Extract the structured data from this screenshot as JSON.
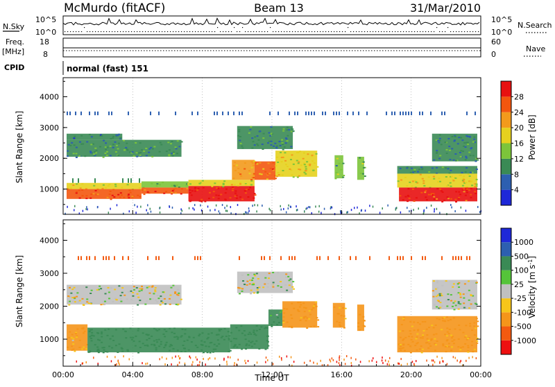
{
  "header": {
    "station": "McMurdo (fitACF)",
    "beam": "Beam 13",
    "date": "31/Mar/2010"
  },
  "top_panels": {
    "nsky_label": "N.Sky",
    "nsky_ticks": [
      "10^5",
      "10^0"
    ],
    "nsearch_label": "N.Search",
    "nsearch_ticks": [
      "10^5",
      "10^0"
    ],
    "freq_label_1": "Freq.",
    "freq_label_2": "[MHz]",
    "freq_ticks": [
      "18",
      "8"
    ],
    "nave_label": "Nave",
    "nave_ticks": [
      "60",
      "0"
    ],
    "cpid_label": "CPID",
    "cpid_value": "normal (fast) 151"
  },
  "x_axis": {
    "label": "Time UT",
    "ticks": [
      "00:00",
      "04:00",
      "08:00",
      "12:00",
      "16:00",
      "20:00",
      "00:00"
    ]
  },
  "chart_data": [
    {
      "type": "heatmap",
      "title": "",
      "quantity": "Power",
      "colorbar_label": "Power [dB]",
      "colorbar_ticks": [
        "4",
        "8",
        "12",
        "16",
        "20",
        "24",
        "28"
      ],
      "colorbar_range": [
        0,
        32
      ],
      "colors": [
        "#1e28d8",
        "#2d5fb0",
        "#3a8a55",
        "#7cc43a",
        "#e6d11e",
        "#f39a1c",
        "#f3560e",
        "#e81010"
      ],
      "xlabel": "Time UT",
      "ylabel": "Slant Range [km]",
      "ylim": [
        180,
        4620
      ],
      "yticks": [
        "1000",
        "2000",
        "3000",
        "4000"
      ],
      "xlim_hours": [
        0,
        24
      ],
      "regions": [
        {
          "t0": 0.2,
          "t1": 6.8,
          "r0": 2050,
          "r1": 2600,
          "value": 10
        },
        {
          "t0": 0.2,
          "t1": 3.4,
          "r0": 2600,
          "r1": 2800,
          "value": 8
        },
        {
          "t0": 0.2,
          "t1": 4.5,
          "r0": 1200,
          "r1": 1350,
          "value": 11
        },
        {
          "t0": 0.2,
          "t1": 4.5,
          "r0": 1000,
          "r1": 1200,
          "value": 18
        },
        {
          "t0": 0.2,
          "t1": 4.5,
          "r0": 680,
          "r1": 1000,
          "value": 27
        },
        {
          "t0": 4.5,
          "t1": 7.2,
          "r0": 1050,
          "r1": 1250,
          "value": 14
        },
        {
          "t0": 4.5,
          "t1": 7.2,
          "r0": 850,
          "r1": 1050,
          "value": 27
        },
        {
          "t0": 7.2,
          "t1": 11.0,
          "r0": 600,
          "r1": 1100,
          "value": 29
        },
        {
          "t0": 7.2,
          "t1": 11.0,
          "r0": 1100,
          "r1": 1300,
          "value": 17
        },
        {
          "t0": 11.0,
          "t1": 12.2,
          "r0": 1300,
          "r1": 1900,
          "value": 24
        },
        {
          "t0": 9.7,
          "t1": 11.0,
          "r0": 1300,
          "r1": 1950,
          "value": 22
        },
        {
          "t0": 12.2,
          "t1": 14.6,
          "r0": 1400,
          "r1": 2250,
          "value": 17
        },
        {
          "t0": 10.0,
          "t1": 13.2,
          "r0": 2300,
          "r1": 3050,
          "value": 9
        },
        {
          "t0": 15.6,
          "t1": 16.1,
          "r0": 1350,
          "r1": 2100,
          "value": 12
        },
        {
          "t0": 16.9,
          "t1": 17.3,
          "r0": 1300,
          "r1": 2050,
          "value": 14
        },
        {
          "t0": 19.2,
          "t1": 23.8,
          "r0": 1500,
          "r1": 1750,
          "value": 10
        },
        {
          "t0": 19.2,
          "t1": 23.8,
          "r0": 1050,
          "r1": 1500,
          "value": 17
        },
        {
          "t0": 19.3,
          "t1": 23.8,
          "r0": 600,
          "r1": 1050,
          "value": 28
        },
        {
          "t0": 21.2,
          "t1": 23.8,
          "r0": 1900,
          "r1": 2800,
          "value": 9
        },
        {
          "t0": 0.2,
          "t1": 23.8,
          "r0": 3400,
          "r1": 3520,
          "value": 6
        }
      ]
    },
    {
      "type": "heatmap",
      "title": "",
      "quantity": "Velocity",
      "colorbar_label": "Velocity [m s^-1]",
      "colorbar_ticks": [
        "1000",
        "500",
        "100",
        "25",
        "-25",
        "-100",
        "-500",
        "-1000"
      ],
      "colorbar_classes": [
        "<-1000",
        "-1000..-500",
        "-500..-100",
        "-100..-25",
        "-25..25",
        "25..100",
        "100..500",
        "500..1000",
        ">1000"
      ],
      "colors": [
        "#ee1010",
        "#f35a10",
        "#f5951a",
        "#f6c51a",
        "#c0c0c0",
        "#55c43a",
        "#3a8a55",
        "#2d5fb0",
        "#1e28d8"
      ],
      "xlabel": "Time UT",
      "ylabel": "Slant Range [km]",
      "ylim": [
        180,
        4620
      ],
      "yticks": [
        "1000",
        "2000",
        "3000",
        "4000"
      ],
      "xlim_hours": [
        0,
        24
      ],
      "regions": [
        {
          "t0": 0.2,
          "t1": 6.8,
          "r0": 2050,
          "r1": 2650,
          "value": 0
        },
        {
          "t0": 0.2,
          "t1": 1.4,
          "r0": 650,
          "r1": 1450,
          "value": -150
        },
        {
          "t0": 1.4,
          "t1": 9.6,
          "r0": 600,
          "r1": 1350,
          "value": 300
        },
        {
          "t0": 9.6,
          "t1": 11.8,
          "r0": 700,
          "r1": 1450,
          "value": 250
        },
        {
          "t0": 11.8,
          "t1": 12.6,
          "r0": 1400,
          "r1": 1900,
          "value": 150
        },
        {
          "t0": 12.6,
          "t1": 14.6,
          "r0": 1350,
          "r1": 2150,
          "value": -200
        },
        {
          "t0": 10.0,
          "t1": 13.2,
          "r0": 2400,
          "r1": 3050,
          "value": 0
        },
        {
          "t0": 15.5,
          "t1": 16.2,
          "r0": 1350,
          "r1": 2100,
          "value": -200
        },
        {
          "t0": 16.9,
          "t1": 17.3,
          "r0": 1250,
          "r1": 2050,
          "value": -200
        },
        {
          "t0": 19.2,
          "t1": 23.8,
          "r0": 600,
          "r1": 1700,
          "value": -200
        },
        {
          "t0": 21.2,
          "t1": 23.8,
          "r0": 1900,
          "r1": 2800,
          "value": 0
        },
        {
          "t0": 0.2,
          "t1": 23.8,
          "r0": 3400,
          "r1": 3520,
          "value": -600
        }
      ]
    }
  ]
}
